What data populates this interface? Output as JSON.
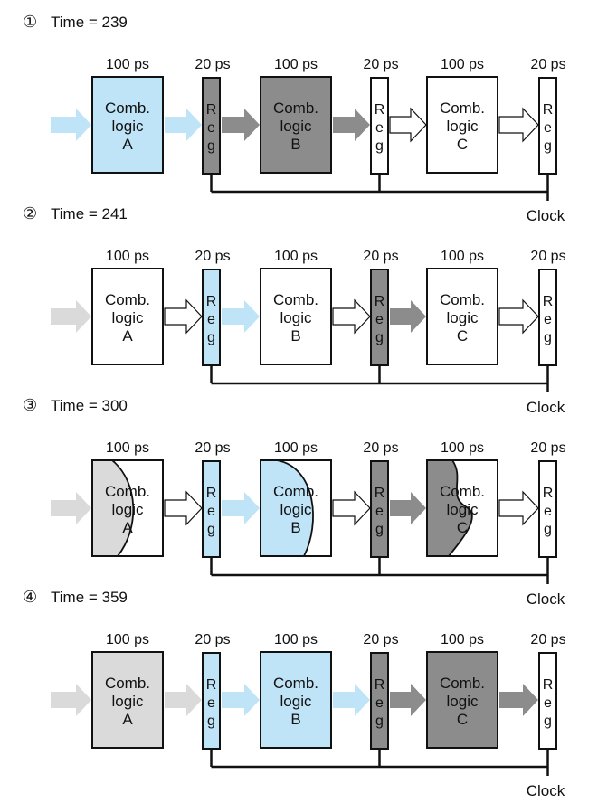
{
  "panels": [
    {
      "step": "①",
      "time": "Time = 239",
      "comb": [
        {
          "label": [
            "Comb.",
            "logic",
            "A"
          ],
          "fill": "blue",
          "wave": null
        },
        {
          "label": [
            "Comb.",
            "logic",
            "B"
          ],
          "fill": "dark",
          "wave": null
        },
        {
          "label": [
            "Comb.",
            "logic",
            "C"
          ],
          "fill": "white",
          "wave": null
        }
      ],
      "regs": [
        "dark",
        "white",
        "white"
      ],
      "arrows": [
        "blue",
        "blue",
        "dark",
        "dark",
        "hollow",
        "hollow"
      ],
      "clock": "Clock"
    },
    {
      "step": "②",
      "time": "Time = 241",
      "comb": [
        {
          "label": [
            "Comb.",
            "logic",
            "A"
          ],
          "fill": "white",
          "wave": null
        },
        {
          "label": [
            "Comb.",
            "logic",
            "B"
          ],
          "fill": "white",
          "wave": null
        },
        {
          "label": [
            "Comb.",
            "logic",
            "C"
          ],
          "fill": "white",
          "wave": null
        }
      ],
      "regs": [
        "blue",
        "dark",
        "white"
      ],
      "arrows": [
        "light",
        "hollow",
        "blue",
        "hollow",
        "dark",
        "hollow"
      ],
      "clock": "Clock"
    },
    {
      "step": "③",
      "time": "Time = 300",
      "comb": [
        {
          "label": [
            "Comb.",
            "logic",
            "A"
          ],
          "fill": "white",
          "wave": "light"
        },
        {
          "label": [
            "Comb.",
            "logic",
            "B"
          ],
          "fill": "white",
          "wave": "blue"
        },
        {
          "label": [
            "Comb.",
            "logic",
            "C"
          ],
          "fill": "white",
          "wave": "dark"
        }
      ],
      "regs": [
        "blue",
        "dark",
        "white"
      ],
      "arrows": [
        "light",
        "hollow",
        "blue",
        "hollow",
        "dark",
        "hollow"
      ],
      "clock": "Clock"
    },
    {
      "step": "④",
      "time": "Time = 359",
      "comb": [
        {
          "label": [
            "Comb.",
            "logic",
            "A"
          ],
          "fill": "light",
          "wave": null
        },
        {
          "label": [
            "Comb.",
            "logic",
            "B"
          ],
          "fill": "blue",
          "wave": null
        },
        {
          "label": [
            "Comb.",
            "logic",
            "C"
          ],
          "fill": "dark",
          "wave": null
        }
      ],
      "regs": [
        "blue",
        "dark",
        "white"
      ],
      "arrows": [
        "light",
        "light",
        "blue",
        "blue",
        "dark",
        "dark"
      ],
      "clock": "Clock"
    }
  ],
  "timing": [
    "100 ps",
    "20 ps",
    "100 ps",
    "20 ps",
    "100 ps",
    "20 ps"
  ],
  "reg_letters": [
    "R",
    "e",
    "g"
  ],
  "colors": {
    "blue": "#bfe3f7",
    "dark": "#8c8c8c",
    "light": "#dadada",
    "white": "#ffffff",
    "stroke": "#111111"
  }
}
